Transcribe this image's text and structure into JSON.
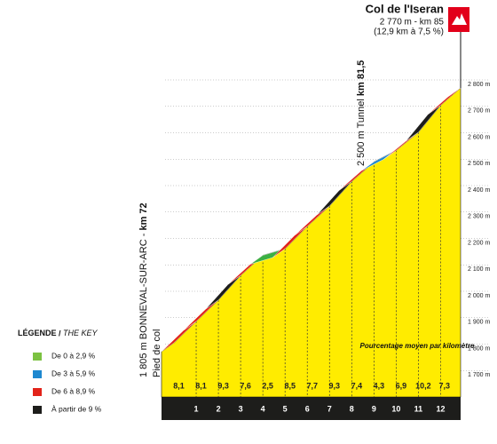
{
  "chart_data": {
    "type": "profile",
    "title": "Col de l'Iseran",
    "summit": {
      "info": "2 770 m - km 85",
      "detail": "(12,9 km à 7,5 %)"
    },
    "annotations": [
      {
        "text": "2 500 m Tunnel",
        "km": "km 81,5"
      },
      {
        "text": "1 805 m BONNEVAL-SUR-ARC -",
        "km": "km 72"
      },
      {
        "text": "Pied de col"
      }
    ],
    "subtitle": "Pourcentage moyen par kilomètre",
    "x": [
      0,
      1,
      2,
      3,
      4,
      5,
      6,
      7,
      8,
      9,
      10,
      11,
      12,
      12.9
    ],
    "values": [
      1805,
      1886,
      1967,
      2060,
      2136,
      2161,
      2246,
      2323,
      2416,
      2490,
      2533,
      2602,
      2704,
      2770
    ],
    "xlim": [
      0,
      12.9
    ],
    "xticks": [
      1,
      2,
      3,
      4,
      5,
      6,
      7,
      8,
      9,
      10,
      11,
      12
    ],
    "ylim": [
      1600,
      2800
    ],
    "yticks": [
      {
        "value": 1700,
        "label": "1 700 m"
      },
      {
        "value": 1800,
        "label": "1 800 m"
      },
      {
        "value": 1900,
        "label": "1 900 m"
      },
      {
        "value": 2000,
        "label": "2 000 m"
      },
      {
        "value": 2100,
        "label": "2 100 m"
      },
      {
        "value": 2200,
        "label": "2 200 m"
      },
      {
        "value": 2300,
        "label": "2 300 m"
      },
      {
        "value": 2400,
        "label": "2 400 m"
      },
      {
        "value": 2500,
        "label": "2 500 m"
      },
      {
        "value": 2600,
        "label": "2 600 m"
      },
      {
        "value": 2700,
        "label": "2 700 m"
      },
      {
        "value": 2800,
        "label": "2 800 m"
      }
    ],
    "grid": true,
    "fill_color": "#ffec00",
    "gradients": {
      "values": [
        8.1,
        8.1,
        9.3,
        7.6,
        2.5,
        8.5,
        7.7,
        9.3,
        7.4,
        4.3,
        6.9,
        10.2,
        7.3
      ],
      "value_labels": [
        "8,1",
        "8,1",
        "9,3",
        "7,6",
        "2,5",
        "8,5",
        "7,7",
        "9,3",
        "7,4",
        "4,3",
        "6,9",
        "10,2",
        "7,3"
      ],
      "colors": [
        "#e2231a",
        "#e2231a",
        "#1d1d1b",
        "#e2231a",
        "#3cb044",
        "#e2231a",
        "#e2231a",
        "#1d1d1b",
        "#e2231a",
        "#1e88d0",
        "#e2231a",
        "#1d1d1b",
        "#e2231a"
      ]
    },
    "legend": {
      "title": "LÉGENDE",
      "title_en": "THE KEY",
      "entries": [
        {
          "label": "De 0 à 2,9 %",
          "color": "#7cc242"
        },
        {
          "label": "De 3 à 5,9 %",
          "color": "#1e88d0"
        },
        {
          "label": "De 6 à 8,9 %",
          "color": "#e2231a"
        },
        {
          "label": "À partir de 9 %",
          "color": "#1d1d1b"
        }
      ]
    }
  }
}
